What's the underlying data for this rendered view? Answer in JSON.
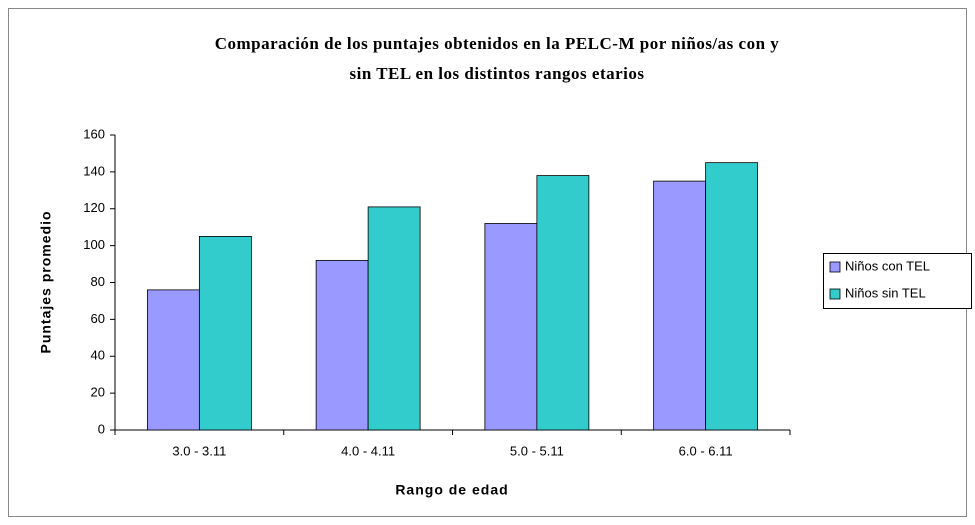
{
  "chart_data": {
    "type": "bar",
    "title": [
      "Comparación de los puntajes obtenidos en la PELC-M  por niños/as con y",
      "sin TEL en los distintos rangos etarios"
    ],
    "x_label": "Rango de edad",
    "y_label": "Puntajes promedio",
    "categories": [
      "3.0 - 3.11",
      "4.0 - 4.11",
      "5.0 - 5.11",
      "6.0 - 6.11"
    ],
    "series": [
      {
        "name": "Niños con TEL",
        "color": "#9999ff",
        "values": [
          76,
          92,
          112,
          135
        ]
      },
      {
        "name": "Niños sin TEL",
        "color": "#33cccc",
        "values": [
          105,
          121,
          138,
          145
        ]
      }
    ],
    "ylim": [
      0,
      160
    ],
    "yticks": [
      0,
      20,
      40,
      60,
      80,
      100,
      120,
      140,
      160
    ],
    "grid": false,
    "legend": "right"
  }
}
